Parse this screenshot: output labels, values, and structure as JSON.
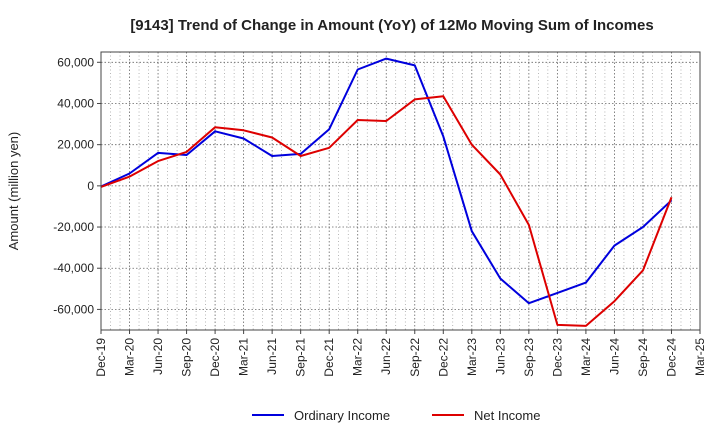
{
  "chart_data": {
    "type": "line",
    "title": "[9143]  Trend of Change in Amount (YoY) of 12Mo Moving Sum of Incomes",
    "ylabel": "Amount (million yen)",
    "xlabel": "",
    "ylim": [
      -70000,
      65000
    ],
    "yticks": [
      60000,
      40000,
      20000,
      0,
      -20000,
      -40000,
      -60000
    ],
    "ytick_labels": [
      "60,000",
      "40,000",
      "20,000",
      "0",
      "-20,000",
      "-40,000",
      "-60,000"
    ],
    "x_ticks": [
      "Dec-19",
      "Mar-20",
      "Jun-20",
      "Sep-20",
      "Dec-20",
      "Mar-21",
      "Jun-21",
      "Sep-21",
      "Dec-21",
      "Mar-22",
      "Jun-22",
      "Sep-22",
      "Dec-22",
      "Mar-23",
      "Jun-23",
      "Sep-23",
      "Dec-23",
      "Mar-24",
      "Jun-24",
      "Sep-24",
      "Dec-24",
      "Mar-25"
    ],
    "grid": true,
    "legend_position": "bottom",
    "series": [
      {
        "name": "Ordinary Income",
        "color": "#0000dd",
        "values": [
          -300,
          6000,
          16000,
          15000,
          26500,
          23000,
          14500,
          15500,
          27500,
          56500,
          61800,
          58500,
          24000,
          -22000,
          -45000,
          -57000,
          -52000,
          -47000,
          -29000,
          -20000,
          -7000
        ]
      },
      {
        "name": "Net Income",
        "color": "#dd0000",
        "values": [
          -500,
          4500,
          12000,
          16500,
          28500,
          27000,
          23500,
          14500,
          18500,
          32000,
          31500,
          42000,
          43500,
          20000,
          5500,
          -19000,
          -67500,
          -68000,
          -56000,
          -41000,
          -5500
        ]
      }
    ]
  }
}
